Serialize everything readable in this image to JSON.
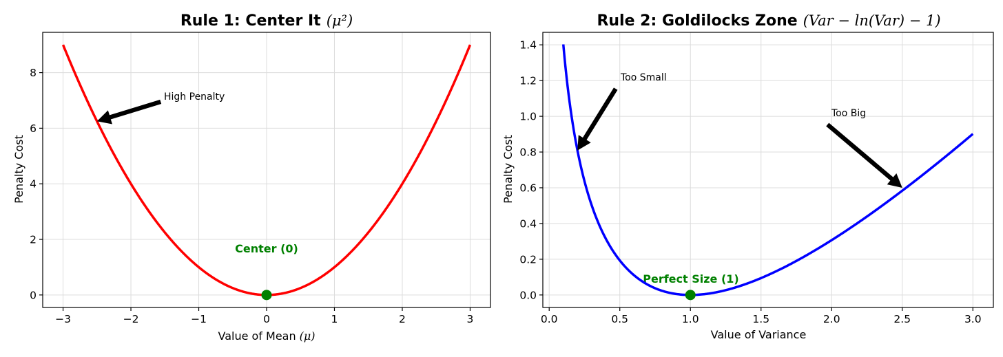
{
  "chart_data": [
    {
      "type": "line",
      "title": "Rule 1: Center It",
      "title_math": "(μ²)",
      "xlabel": "Value of Mean",
      "xlabel_math": "(μ)",
      "ylabel": "Penalty Cost",
      "xlim": [
        -3.3,
        3.3
      ],
      "ylim": [
        -0.45,
        9.45
      ],
      "xticks": [
        -3,
        -2,
        -1,
        0,
        1,
        2,
        3
      ],
      "xtick_labels": [
        "−3",
        "−2",
        "−1",
        "0",
        "1",
        "2",
        "3"
      ],
      "yticks": [
        0,
        2,
        4,
        6,
        8
      ],
      "ytick_labels": [
        "0",
        "2",
        "4",
        "6",
        "8"
      ],
      "grid": true,
      "series": [
        {
          "function": "x^2",
          "x_range": [
            -3,
            3
          ],
          "color": "#ff0000",
          "x": [
            -3,
            -2.5,
            -2,
            -1.5,
            -1,
            -0.5,
            0,
            0.5,
            1,
            1.5,
            2,
            2.5,
            3
          ],
          "y": [
            9,
            6.25,
            4,
            2.25,
            1,
            0.25,
            0,
            0.25,
            1,
            2.25,
            4,
            6.25,
            9
          ]
        }
      ],
      "marker": {
        "x": 0,
        "y": 0,
        "color": "#008000"
      },
      "marker_label": {
        "text": "Center (0)",
        "x": 0,
        "y": 1.5,
        "color": "#008000"
      },
      "annotations": [
        {
          "text": "High Penalty",
          "text_x": -1.5,
          "text_y": 7,
          "arrow_to_x": -2.5,
          "arrow_to_y": 6.25
        }
      ]
    },
    {
      "type": "line",
      "title": "Rule 2: Goldilocks Zone",
      "title_math": "(Var − ln(Var) − 1)",
      "xlabel": "Value of Variance",
      "ylabel": "Penalty Cost",
      "xlim": [
        -0.045,
        3.145
      ],
      "ylim": [
        -0.07,
        1.47
      ],
      "xticks": [
        0,
        0.5,
        1,
        1.5,
        2,
        2.5,
        3
      ],
      "xtick_labels": [
        "0.0",
        "0.5",
        "1.0",
        "1.5",
        "2.0",
        "2.5",
        "3.0"
      ],
      "yticks": [
        0,
        0.2,
        0.4,
        0.6,
        0.8,
        1.0,
        1.2,
        1.4
      ],
      "ytick_labels": [
        "0.0",
        "0.2",
        "0.4",
        "0.6",
        "0.8",
        "1.0",
        "1.2",
        "1.4"
      ],
      "grid": true,
      "series": [
        {
          "function": "x - ln(x) - 1",
          "x_range": [
            0.1,
            3
          ],
          "color": "#0000ff",
          "x": [
            0.1,
            0.2,
            0.3,
            0.5,
            0.75,
            1,
            1.5,
            2,
            2.5,
            3
          ],
          "y": [
            1.403,
            0.809,
            0.504,
            0.193,
            0.038,
            0,
            0.095,
            0.307,
            0.584,
            0.901
          ]
        }
      ],
      "marker": {
        "x": 1,
        "y": 0,
        "color": "#008000"
      },
      "marker_label": {
        "text": "Perfect Size (1)",
        "x": 1,
        "y": 0.07,
        "color": "#008000"
      },
      "annotations": [
        {
          "text": "Too Small",
          "text_x": 0.5,
          "text_y": 1.2,
          "arrow_to_x": 0.2,
          "arrow_to_y": 0.809
        },
        {
          "text": "Too Big",
          "text_x": 2.0,
          "text_y": 1.0,
          "arrow_to_x": 2.5,
          "arrow_to_y": 0.6
        }
      ]
    }
  ]
}
